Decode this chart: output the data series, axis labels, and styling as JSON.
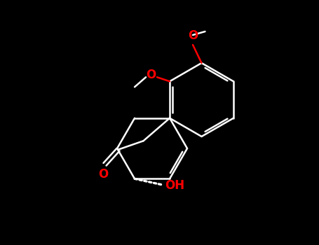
{
  "bg_color": "#000000",
  "bond_color": "#ffffff",
  "oxygen_color": "#ff0000",
  "lw": 1.8,
  "fontsize_label": 11,
  "figsize": [
    4.55,
    3.5
  ],
  "dpi": 100,
  "xlim": [
    0,
    9
  ],
  "ylim": [
    0,
    7
  ]
}
